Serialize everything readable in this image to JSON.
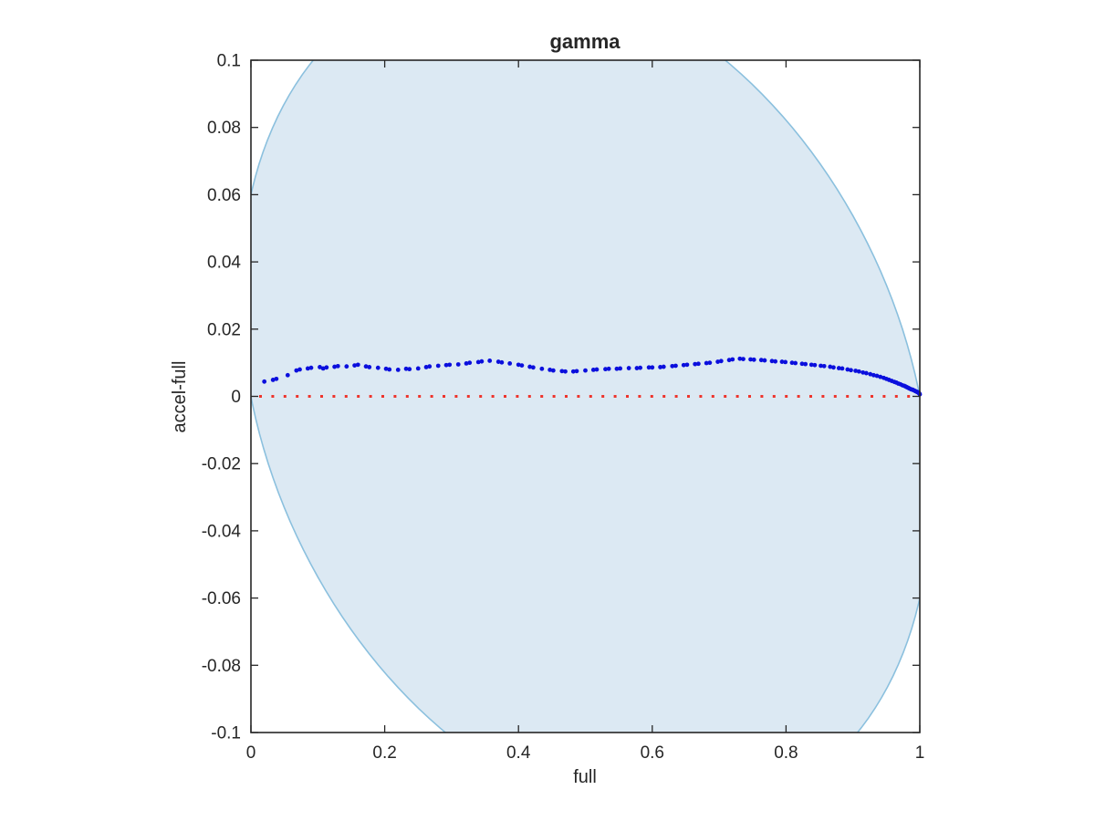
{
  "figure": {
    "title": "gamma",
    "xlabel": "full",
    "ylabel": "accel-full"
  },
  "colors": {
    "background": "#ffffff",
    "axis": "#262626",
    "ellipse_fill": "#dce9f3",
    "ellipse_stroke": "#8bc0de",
    "scatter": "#0b0fdd",
    "zero_line": "#ee352c"
  },
  "chart_data": {
    "type": "scatter",
    "title": "gamma",
    "xlabel": "full",
    "ylabel": "accel-full",
    "xlim": [
      0,
      1
    ],
    "ylim": [
      -0.1,
      0.1
    ],
    "x_ticks": [
      0,
      0.2,
      0.4,
      0.6,
      0.8,
      1
    ],
    "x_tick_labels": [
      "0",
      "0.2",
      "0.4",
      "0.6",
      "0.8",
      "1"
    ],
    "y_ticks": [
      0.1,
      0.08,
      0.06,
      0.04,
      0.02,
      0,
      -0.02,
      -0.04,
      -0.06,
      -0.08,
      -0.1
    ],
    "y_tick_labels": [
      "0.1",
      "0.08",
      "0.06",
      "0.04",
      "0.02",
      "0",
      "-0.02",
      "-0.04",
      "-0.06",
      "-0.08",
      "-0.1"
    ],
    "grid": false,
    "legend": "none",
    "series": [
      {
        "name": "confidence-region-ellipse",
        "type": "ellipse",
        "cx": 0.5,
        "cy": 0,
        "a": 0.5166,
        "b": 0.1229,
        "ux": 0.998,
        "uy": -0.0634,
        "note": "rotated ellipse through (0,0),(0,0.06),(1,0),(1,-0.06), clipped to axes box"
      },
      {
        "name": "zero-reference-line",
        "type": "line",
        "style": "dotted",
        "y": 0
      },
      {
        "name": "accel-minus-full-difference",
        "type": "scatter",
        "x": [
          0.02,
          0.033,
          0.038,
          0.055,
          0.068,
          0.073,
          0.085,
          0.09,
          0.103,
          0.108,
          0.113,
          0.125,
          0.13,
          0.143,
          0.155,
          0.16,
          0.172,
          0.177,
          0.19,
          0.202,
          0.207,
          0.22,
          0.232,
          0.237,
          0.25,
          0.262,
          0.267,
          0.28,
          0.292,
          0.297,
          0.31,
          0.322,
          0.327,
          0.34,
          0.345,
          0.357,
          0.37,
          0.375,
          0.387,
          0.4,
          0.405,
          0.417,
          0.422,
          0.435,
          0.447,
          0.452,
          0.465,
          0.47,
          0.482,
          0.487,
          0.5,
          0.512,
          0.517,
          0.53,
          0.535,
          0.547,
          0.552,
          0.565,
          0.577,
          0.582,
          0.595,
          0.6,
          0.612,
          0.617,
          0.63,
          0.635,
          0.647,
          0.652,
          0.664,
          0.669,
          0.681,
          0.686,
          0.698,
          0.703,
          0.715,
          0.72,
          0.731,
          0.736,
          0.747,
          0.752,
          0.763,
          0.768,
          0.779,
          0.784,
          0.794,
          0.799,
          0.809,
          0.814,
          0.824,
          0.829,
          0.838,
          0.843,
          0.852,
          0.857,
          0.866,
          0.871,
          0.879,
          0.884,
          0.892,
          0.897,
          0.904,
          0.909,
          0.915,
          0.92,
          0.926,
          0.931,
          0.936,
          0.941,
          0.946,
          0.95,
          0.954,
          0.958,
          0.962,
          0.965,
          0.968,
          0.971,
          0.974,
          0.977,
          0.979,
          0.981,
          0.983,
          0.985,
          0.987,
          0.989,
          0.99,
          0.992,
          0.993,
          0.994,
          0.995,
          0.996,
          0.997,
          0.998,
          0.9985,
          0.999,
          0.9995,
          1.0
        ],
        "y": [
          0.0044,
          0.0049,
          0.0052,
          0.0063,
          0.0077,
          0.008,
          0.0083,
          0.0085,
          0.0087,
          0.0083,
          0.0086,
          0.0088,
          0.009,
          0.0089,
          0.0092,
          0.0094,
          0.0089,
          0.0087,
          0.0085,
          0.0082,
          0.008,
          0.0079,
          0.0082,
          0.0081,
          0.0083,
          0.0087,
          0.0089,
          0.0091,
          0.0093,
          0.0094,
          0.0095,
          0.0098,
          0.01,
          0.0102,
          0.0104,
          0.0106,
          0.0103,
          0.0101,
          0.0098,
          0.0094,
          0.0092,
          0.0088,
          0.0086,
          0.0082,
          0.0079,
          0.0077,
          0.0075,
          0.0074,
          0.0074,
          0.0075,
          0.0077,
          0.0079,
          0.008,
          0.0081,
          0.0082,
          0.0082,
          0.0083,
          0.0084,
          0.0084,
          0.0085,
          0.0086,
          0.0086,
          0.0087,
          0.0088,
          0.009,
          0.0091,
          0.0093,
          0.0094,
          0.0096,
          0.0097,
          0.0099,
          0.01,
          0.0103,
          0.0105,
          0.0108,
          0.011,
          0.0112,
          0.0111,
          0.011,
          0.0109,
          0.0108,
          0.0107,
          0.0105,
          0.0104,
          0.0103,
          0.0102,
          0.01,
          0.0099,
          0.0097,
          0.0096,
          0.0094,
          0.0093,
          0.0091,
          0.009,
          0.0088,
          0.0086,
          0.0084,
          0.0083,
          0.008,
          0.0078,
          0.0076,
          0.0074,
          0.0071,
          0.0069,
          0.0066,
          0.0063,
          0.0061,
          0.0058,
          0.0055,
          0.0052,
          0.0049,
          0.0046,
          0.0043,
          0.0041,
          0.0038,
          0.0036,
          0.0033,
          0.0031,
          0.0029,
          0.0027,
          0.0025,
          0.0023,
          0.0021,
          0.002,
          0.0019,
          0.0017,
          0.0016,
          0.0015,
          0.0014,
          0.0013,
          0.0012,
          0.0011,
          0.001,
          0.0009,
          0.0008,
          0.0006
        ]
      }
    ]
  }
}
